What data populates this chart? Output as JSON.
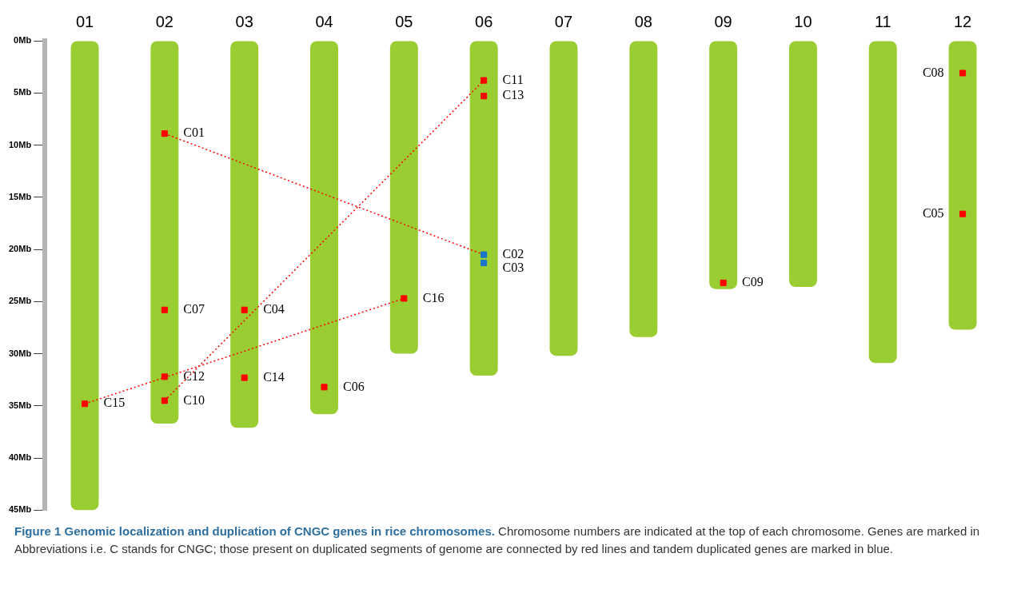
{
  "chart_data": {
    "type": "bar",
    "categories": [
      "01",
      "02",
      "03",
      "04",
      "05",
      "06",
      "07",
      "08",
      "09",
      "10",
      "11",
      "12"
    ],
    "ylim": [
      45,
      0
    ],
    "yticks": [
      {
        "value": 0,
        "label": "0Mb"
      },
      {
        "value": 5,
        "label": "5Mb"
      },
      {
        "value": 10,
        "label": "10Mb"
      },
      {
        "value": 15,
        "label": "15Mb"
      },
      {
        "value": 20,
        "label": "20Mb"
      },
      {
        "value": 25,
        "label": "25Mb"
      },
      {
        "value": 30,
        "label": "30Mb"
      },
      {
        "value": 35,
        "label": "35Mb"
      },
      {
        "value": 40,
        "label": "40Mb"
      },
      {
        "value": 45,
        "label": "45Mb"
      }
    ],
    "grid": false,
    "legend": false,
    "series": [
      {
        "color": "#9acd32",
        "values": [
          45.0,
          36.7,
          37.1,
          35.8,
          30.0,
          32.1,
          30.2,
          28.4,
          23.8,
          23.6,
          30.9,
          27.7
        ]
      },
      {
        "type": "scatter",
        "color": "#ff0000",
        "marker": "square",
        "x": [
          "01",
          "02",
          "02",
          "02",
          "02",
          "03",
          "03",
          "04",
          "05",
          "06",
          "06",
          "09",
          "12",
          "12"
        ],
        "values": [
          34.8,
          8.9,
          25.8,
          32.2,
          34.5,
          25.8,
          32.3,
          33.2,
          24.7,
          3.8,
          5.3,
          23.2,
          3.1,
          16.6
        ],
        "value_labels": [
          "C15",
          "C01",
          "C07",
          "C12",
          "C10",
          "C04",
          "C14",
          "C06",
          "C16",
          "C11",
          "C13",
          "C09",
          "C08",
          "C05"
        ]
      },
      {
        "type": "scatter",
        "color": "#1874cd",
        "marker": "square",
        "x": [
          "06",
          "06"
        ],
        "values": [
          20.5,
          21.3
        ],
        "value_labels": [
          "C02",
          "C03"
        ]
      },
      {
        "type": "line",
        "color": "#ff0000",
        "line_style": "dotted",
        "x": [
          "02",
          "06"
        ],
        "values": [
          8.9,
          20.5
        ]
      },
      {
        "type": "line",
        "color": "#ff0000",
        "line_style": "dotted",
        "x": [
          "02",
          "06"
        ],
        "values": [
          34.5,
          3.8
        ]
      },
      {
        "type": "line",
        "color": "#ff0000",
        "line_style": "dotted",
        "x": [
          "01",
          "05"
        ],
        "values": [
          34.8,
          24.7
        ]
      }
    ],
    "annotations": [
      "Figure 1 Genomic localization and duplication of CNGC genes in rice chromosomes.",
      "Chromosome numbers are indicated at the top of each chromosome. Genes are marked in Abbreviations i.e. C stands for CNGC; those present on duplicated segments of genome are connected by red lines and tandem duplicated genes are marked in blue."
    ]
  }
}
